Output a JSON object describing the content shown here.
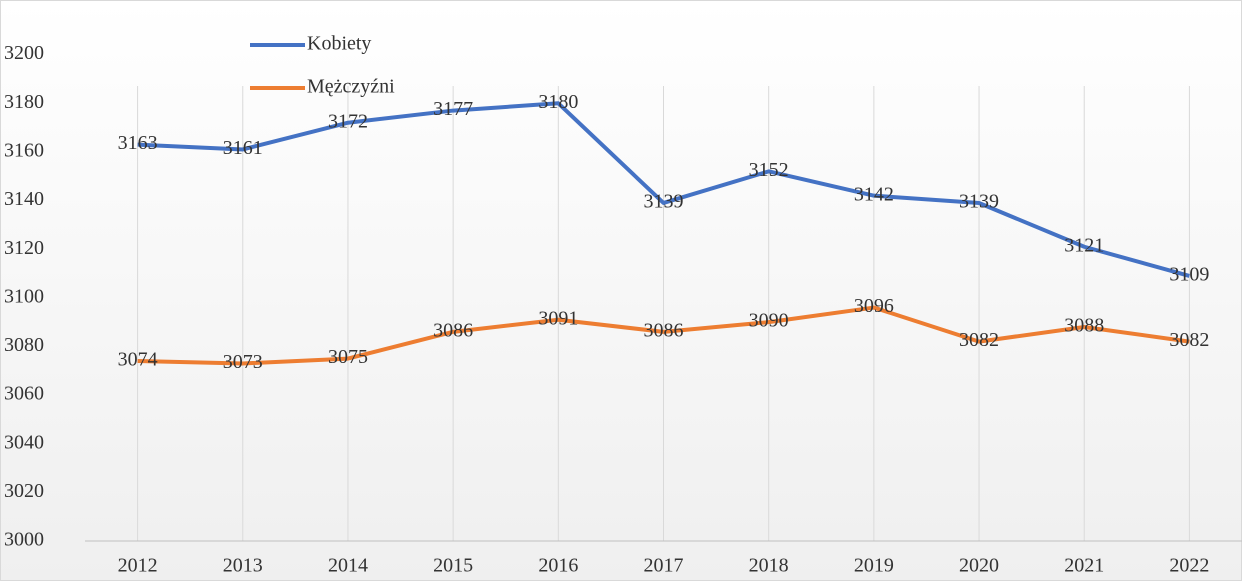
{
  "chart_data": {
    "type": "line",
    "categories": [
      "2012",
      "2013",
      "2014",
      "2015",
      "2016",
      "2017",
      "2018",
      "2019",
      "2020",
      "2021",
      "2022"
    ],
    "series": [
      {
        "name": "Kobiety",
        "color": "#4472c4",
        "values": [
          3163,
          3161,
          3172,
          3177,
          3180,
          3139,
          3152,
          3142,
          3139,
          3121,
          3109
        ]
      },
      {
        "name": "Mężczyźni",
        "color": "#ed7d31",
        "values": [
          3074,
          3073,
          3075,
          3086,
          3091,
          3086,
          3090,
          3096,
          3082,
          3088,
          3082
        ]
      }
    ],
    "ylim": [
      3000,
      3220
    ],
    "yticks": [
      3000,
      3020,
      3040,
      3060,
      3080,
      3100,
      3120,
      3140,
      3160,
      3180,
      3200
    ],
    "grid": "x",
    "legend": "top-left",
    "data_labels": true
  }
}
